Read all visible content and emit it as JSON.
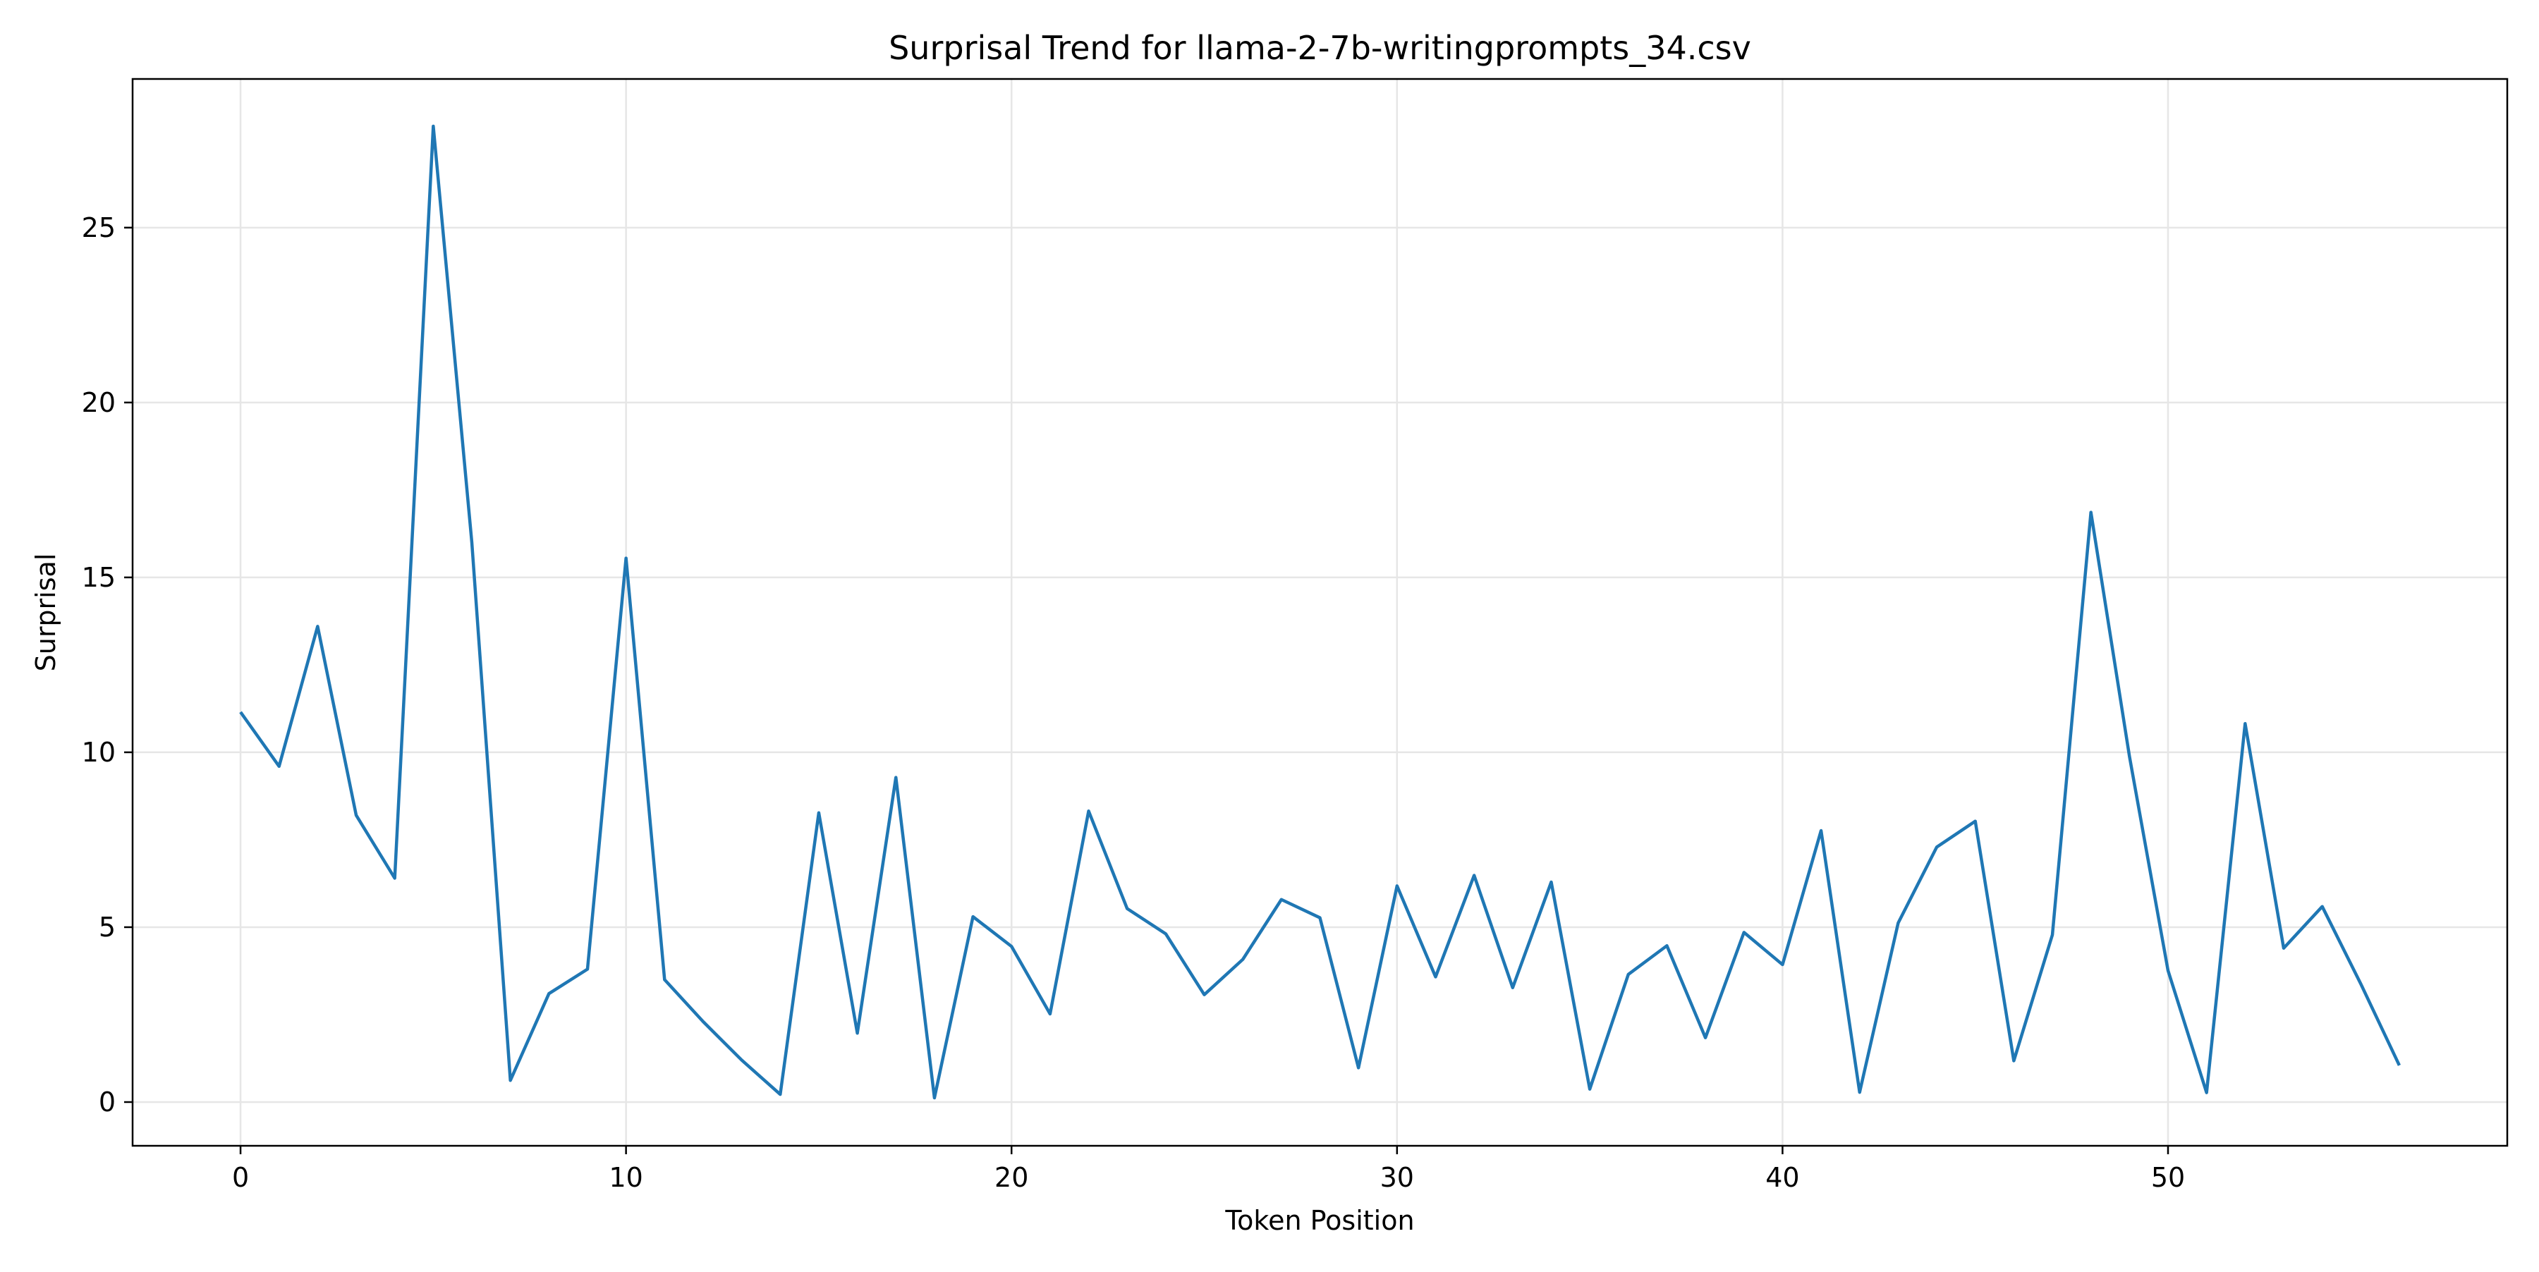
{
  "chart_data": {
    "type": "line",
    "title": "Surprisal Trend for llama-2-7b-writingprompts_34.csv",
    "xlabel": "Token Position",
    "ylabel": "Surprisal",
    "xlim": [
      -2.8,
      58.8
    ],
    "ylim": [
      -1.25,
      29.25
    ],
    "x_ticks": [
      0,
      10,
      20,
      30,
      40,
      50
    ],
    "y_ticks": [
      0,
      5,
      10,
      15,
      20,
      25
    ],
    "x_tick_labels": [
      "0",
      "10",
      "20",
      "30",
      "40",
      "50"
    ],
    "y_tick_labels": [
      "0",
      "5",
      "10",
      "15",
      "20",
      "25"
    ],
    "grid": true,
    "line_color": "#1f77b4",
    "grid_color": "#e6e6e6",
    "series": [
      {
        "x": [
          0,
          1,
          2,
          3,
          4,
          5,
          6,
          7,
          8,
          9,
          10,
          11,
          12,
          13,
          14,
          15,
          16,
          17,
          18,
          19,
          20,
          21,
          22,
          23,
          24,
          25,
          26,
          27,
          28,
          29,
          30,
          31,
          32,
          33,
          34,
          35,
          36,
          37,
          38,
          39,
          40,
          41,
          42,
          43,
          44,
          45,
          46,
          47,
          48,
          49,
          50,
          51,
          52,
          53,
          54,
          55,
          56
        ],
        "values": [
          11.15,
          9.6,
          13.6,
          8.2,
          6.4,
          27.9,
          16.0,
          0.62,
          3.1,
          3.8,
          15.55,
          3.5,
          2.3,
          1.2,
          0.22,
          8.27,
          1.97,
          9.28,
          0.12,
          5.3,
          4.45,
          2.52,
          8.32,
          5.53,
          4.81,
          3.07,
          4.08,
          5.79,
          5.27,
          0.98,
          6.18,
          3.58,
          6.48,
          3.27,
          6.29,
          0.37,
          3.65,
          4.47,
          1.84,
          4.85,
          3.93,
          7.76,
          0.28,
          5.12,
          7.29,
          8.03,
          1.18,
          4.78,
          16.86,
          9.88,
          3.76,
          0.27,
          10.82,
          4.4,
          5.59,
          3.38,
          1.05
        ]
      }
    ]
  }
}
